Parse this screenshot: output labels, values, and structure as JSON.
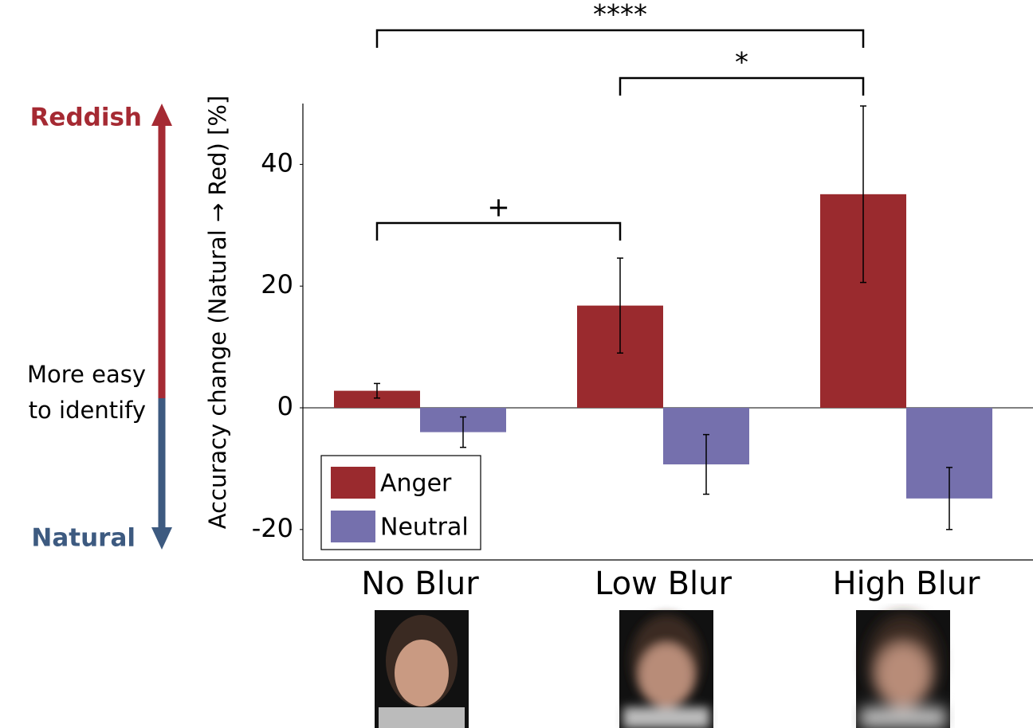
{
  "chart_data": {
    "type": "bar",
    "y_label": "Accuracy change (Natural → Red) [%]",
    "categories": [
      "No Blur",
      "Low Blur",
      "High Blur"
    ],
    "series": [
      {
        "name": "Anger",
        "color": "#9a2a2e",
        "values": [
          2.8,
          16.8,
          35.1
        ],
        "errors": [
          1.2,
          7.8,
          14.5
        ]
      },
      {
        "name": "Neutral",
        "color": "#7570ad",
        "values": [
          -4.0,
          -9.3,
          -14.9
        ],
        "errors": [
          2.5,
          4.9,
          5.1
        ]
      }
    ],
    "ylim": [
      -25,
      50
    ],
    "yticks": [
      -20,
      0,
      20,
      40
    ],
    "legend": "lower-left",
    "annotations": [
      "****",
      "*",
      "+"
    ],
    "side_labels": {
      "top": "Reddish",
      "bottom": "Natural",
      "middle": [
        "More easy",
        "to identify"
      ]
    }
  }
}
